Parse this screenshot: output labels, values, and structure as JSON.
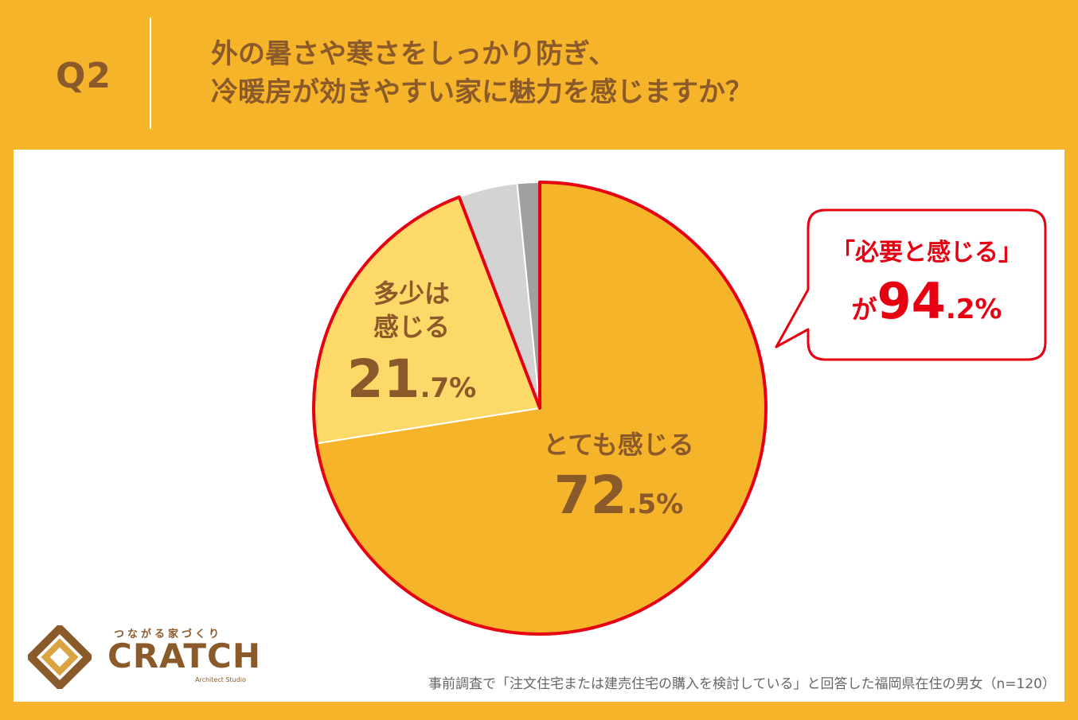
{
  "header": {
    "q_number": "Q2",
    "question_line1": "外の暑さや寒さをしっかり防ぎ、",
    "question_line2": "冷暖房が効きやすい家に魅力を感じますか？"
  },
  "chart_data": {
    "type": "pie",
    "slices": [
      {
        "label": "とても感じる",
        "value": 72.5,
        "color": "#F5B42A",
        "int_part": "72",
        "dec_part": ".5%"
      },
      {
        "label_line1": "多少は",
        "label_line2": "感じる",
        "value": 21.7,
        "color": "#FDD96A",
        "int_part": "21",
        "dec_part": ".7%"
      },
      {
        "value": 4.2,
        "color": "#D3D3D3"
      },
      {
        "value": 1.6,
        "color": "#A0A0A0"
      }
    ],
    "highlight_outline_color": "#E60012"
  },
  "callout": {
    "line1": "「必要と感じる」",
    "prefix": "が",
    "int_part": "94",
    "dec_part": ".2%"
  },
  "footnote": "事前調査で「注文住宅または建売住宅の購入を検討している」と回答した福岡県在住の男女（n=120）",
  "logo": {
    "tagline": "つながる家づくり",
    "name": "CRATCH",
    "sub": "Architect Studio"
  },
  "colors": {
    "background": "#F5B42A",
    "brown": "#8B5A2B",
    "red": "#E60012"
  }
}
